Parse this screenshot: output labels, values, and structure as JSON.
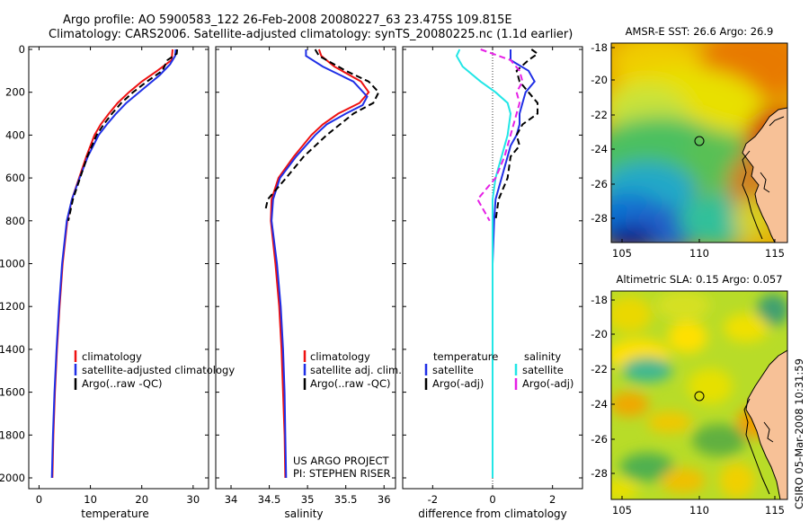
{
  "header": {
    "line1": "Argo profile: AO 5900583_122 26-Feb-2008 20080227_63 23.475S 109.815E",
    "line2": "Climatology: CARS2006. Satellite-adjusted climatology: synTS_20080225.nc (1.1d earlier)"
  },
  "colors": {
    "climatology": "#ee1111",
    "satellite": "#1f2fe6",
    "argo": "#000000",
    "diff_temp_sat": "#1f2fe6",
    "diff_temp_argo": "#000000",
    "diff_sal_sat": "#22e6e6",
    "diff_sal_argo": "#e620e6",
    "land": "#f7c197"
  },
  "chart_data": [
    {
      "id": "temperature",
      "type": "line",
      "xlabel": "temperature",
      "ylabel": "",
      "xlim": [
        -2,
        33
      ],
      "ylim": [
        2000,
        0
      ],
      "xticks": [
        0,
        10,
        20,
        30
      ],
      "yticks": [
        0,
        200,
        400,
        600,
        800,
        1000,
        1200,
        1400,
        1600,
        1800,
        2000
      ],
      "legend": [
        "climatology",
        "satellite-adjusted climatology",
        "Argo(..raw -QC)"
      ],
      "legend_location": "lower-center",
      "series": [
        {
          "name": "climatology",
          "color": "#ee1111",
          "dash": false,
          "depth": [
            0,
            50,
            100,
            150,
            200,
            250,
            300,
            350,
            400,
            500,
            600,
            700,
            800,
            1000,
            1200,
            1400,
            1600,
            1800,
            2000
          ],
          "values": [
            26.0,
            25.8,
            23.0,
            20.0,
            17.5,
            15.3,
            13.6,
            12.0,
            10.8,
            9.2,
            7.8,
            6.4,
            5.5,
            4.6,
            4.0,
            3.5,
            3.1,
            2.8,
            2.6
          ]
        },
        {
          "name": "satellite-adjusted climatology",
          "color": "#1f2fe6",
          "dash": false,
          "depth": [
            0,
            30,
            70,
            120,
            180,
            250,
            300,
            350,
            400,
            500,
            600,
            700,
            800,
            1000,
            1200,
            1400,
            1600,
            1800,
            2000
          ],
          "values": [
            26.6,
            26.5,
            25.5,
            23.5,
            20.5,
            17.0,
            15.0,
            13.2,
            11.6,
            9.5,
            7.9,
            6.4,
            5.4,
            4.5,
            3.9,
            3.4,
            3.0,
            2.7,
            2.5
          ]
        },
        {
          "name": "Argo(..raw -QC)",
          "color": "#000000",
          "dash": true,
          "depth": [
            0,
            20,
            50,
            100,
            150,
            200,
            250,
            300,
            350,
            400,
            500,
            600,
            700,
            800
          ],
          "values": [
            26.9,
            26.8,
            25.0,
            24.0,
            21.0,
            18.3,
            16.0,
            14.2,
            12.6,
            11.2,
            9.4,
            8.0,
            6.6,
            5.7
          ]
        }
      ]
    },
    {
      "id": "salinity",
      "type": "line",
      "xlabel": "salinity",
      "ylabel": "",
      "xlim": [
        33.8,
        36.15
      ],
      "ylim": [
        2000,
        0
      ],
      "xticks": [
        34,
        34.5,
        35,
        35.5,
        36
      ],
      "yticks": [],
      "legend": [
        "climatology",
        "satellite adj. clim.",
        "Argo(..raw -QC)"
      ],
      "legend_location": "lower-center",
      "annotation": [
        "US ARGO PROJECT",
        "PI: STEPHEN RISER"
      ],
      "series": [
        {
          "name": "climatology",
          "color": "#ee1111",
          "dash": false,
          "depth": [
            0,
            30,
            80,
            150,
            200,
            250,
            300,
            350,
            400,
            500,
            600,
            700,
            800,
            1000,
            1200,
            1400,
            1600,
            1800,
            2000
          ],
          "values": [
            35.15,
            35.18,
            35.35,
            35.7,
            35.8,
            35.68,
            35.4,
            35.2,
            35.05,
            34.82,
            34.62,
            34.53,
            34.52,
            34.58,
            34.63,
            34.66,
            34.68,
            34.7,
            34.71
          ]
        },
        {
          "name": "satellite adj. clim.",
          "color": "#1f2fe6",
          "dash": false,
          "depth": [
            0,
            30,
            80,
            150,
            220,
            260,
            300,
            350,
            400,
            500,
            600,
            700,
            800,
            1000,
            1200,
            1400,
            1600,
            1800,
            2000
          ],
          "values": [
            34.98,
            34.98,
            35.2,
            35.6,
            35.78,
            35.72,
            35.5,
            35.25,
            35.1,
            34.85,
            34.64,
            34.55,
            34.53,
            34.6,
            34.65,
            34.68,
            34.7,
            34.71,
            34.72
          ]
        },
        {
          "name": "Argo(..raw -QC)",
          "color": "#000000",
          "dash": true,
          "depth": [
            0,
            30,
            100,
            150,
            200,
            250,
            300,
            400,
            500,
            600,
            700,
            750
          ],
          "values": [
            35.1,
            35.15,
            35.5,
            35.8,
            35.93,
            35.86,
            35.6,
            35.25,
            34.95,
            34.72,
            34.48,
            34.45
          ]
        }
      ]
    },
    {
      "id": "difference",
      "type": "line",
      "xlabel": "difference from climatology",
      "ylabel": "",
      "xlim": [
        -3,
        3
      ],
      "ylim": [
        2000,
        0
      ],
      "xticks": [
        -2,
        0,
        2
      ],
      "yticks": [],
      "zero_line": true,
      "legend_groups": [
        {
          "title": "temperature",
          "items": [
            "satellite",
            "Argo(-adj)"
          ]
        },
        {
          "title": "salinity",
          "items": [
            "satellite",
            "Argo(-adj)"
          ]
        }
      ],
      "series": [
        {
          "name": "temperature satellite",
          "color": "#1f2fe6",
          "dash": false,
          "depth": [
            0,
            50,
            100,
            150,
            200,
            250,
            300,
            350,
            400,
            450,
            500,
            600,
            700,
            800,
            1000,
            1500,
            2000
          ],
          "values": [
            0.6,
            0.6,
            1.2,
            1.4,
            1.1,
            1.0,
            0.9,
            0.9,
            0.8,
            0.6,
            0.5,
            0.3,
            0.1,
            0.05,
            0.0,
            0.0,
            0.0
          ]
        },
        {
          "name": "temperature Argo(-adj)",
          "color": "#000000",
          "dash": true,
          "depth": [
            0,
            20,
            50,
            100,
            150,
            200,
            250,
            300,
            350,
            400,
            450,
            500,
            600,
            700,
            800
          ],
          "values": [
            1.3,
            1.5,
            1.2,
            0.8,
            0.9,
            1.2,
            1.5,
            1.5,
            1.0,
            0.8,
            0.9,
            0.6,
            0.5,
            0.2,
            0.1
          ]
        },
        {
          "name": "salinity satellite",
          "color": "#22e6e6",
          "dash": false,
          "depth": [
            0,
            30,
            80,
            150,
            200,
            250,
            300,
            400,
            500,
            600,
            700,
            800,
            1000,
            1500,
            2000
          ],
          "values": [
            -1.1,
            -1.2,
            -1.0,
            -0.4,
            0.1,
            0.5,
            0.6,
            0.5,
            0.3,
            0.1,
            0.0,
            0.0,
            0.0,
            0.0,
            0.0
          ]
        },
        {
          "name": "salinity Argo(-adj)",
          "color": "#e620e6",
          "dash": true,
          "depth": [
            0,
            20,
            50,
            100,
            150,
            200,
            250,
            300,
            400,
            500,
            600,
            700,
            750,
            800
          ],
          "values": [
            -0.4,
            0.0,
            0.6,
            0.9,
            1.0,
            0.8,
            0.9,
            0.8,
            0.6,
            0.4,
            0.1,
            -0.5,
            -0.3,
            -0.1
          ]
        }
      ]
    }
  ],
  "maps": [
    {
      "id": "sst",
      "title": "AMSR-E SST: 26.6  Argo: 26.9",
      "xticks": [
        "105",
        "110",
        "115"
      ],
      "yticks": [
        "-18",
        "-20",
        "-22",
        "-24",
        "-26",
        "-28"
      ]
    },
    {
      "id": "sla",
      "title": "Altimetric SLA: 0.15  Argo: 0.057",
      "xticks": [
        "105",
        "110",
        "115"
      ],
      "yticks": [
        "-18",
        "-20",
        "-22",
        "-24",
        "-26",
        "-28"
      ]
    }
  ],
  "credit": "CSIRO 05-Mar-2008 10:31:59"
}
